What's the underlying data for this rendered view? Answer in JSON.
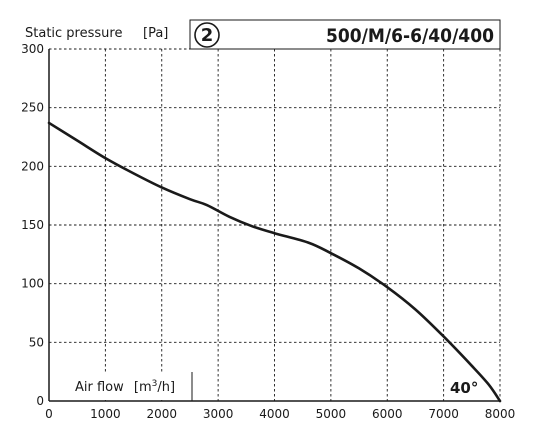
{
  "chart_data": {
    "type": "line",
    "ylabel": "Static pressure",
    "yunit": "[Pa]",
    "xlabel": "Air flow",
    "xunit_prefix": "[m",
    "xunit_sup": "3",
    "xunit_suffix": "/h]",
    "badge": "2",
    "model": "500/M/6-6/40/400",
    "series_label": "40°",
    "xlim": [
      0,
      8000
    ],
    "ylim": [
      0,
      300
    ],
    "xticks": [
      0,
      1000,
      2000,
      3000,
      4000,
      5000,
      6000,
      7000,
      8000
    ],
    "yticks": [
      0,
      50,
      100,
      150,
      200,
      250,
      300
    ],
    "grid": true,
    "series": [
      {
        "x": [
          0,
          500,
          1000,
          1500,
          2000,
          2500,
          2800,
          3200,
          3600,
          4000,
          4600,
          5000,
          5500,
          6000,
          6500,
          7000,
          7500,
          7800,
          8000
        ],
        "y": [
          237,
          222,
          207,
          194,
          182,
          172,
          167,
          157,
          149,
          143,
          135,
          126,
          113,
          97,
          78,
          55,
          30,
          14,
          0
        ]
      }
    ]
  }
}
